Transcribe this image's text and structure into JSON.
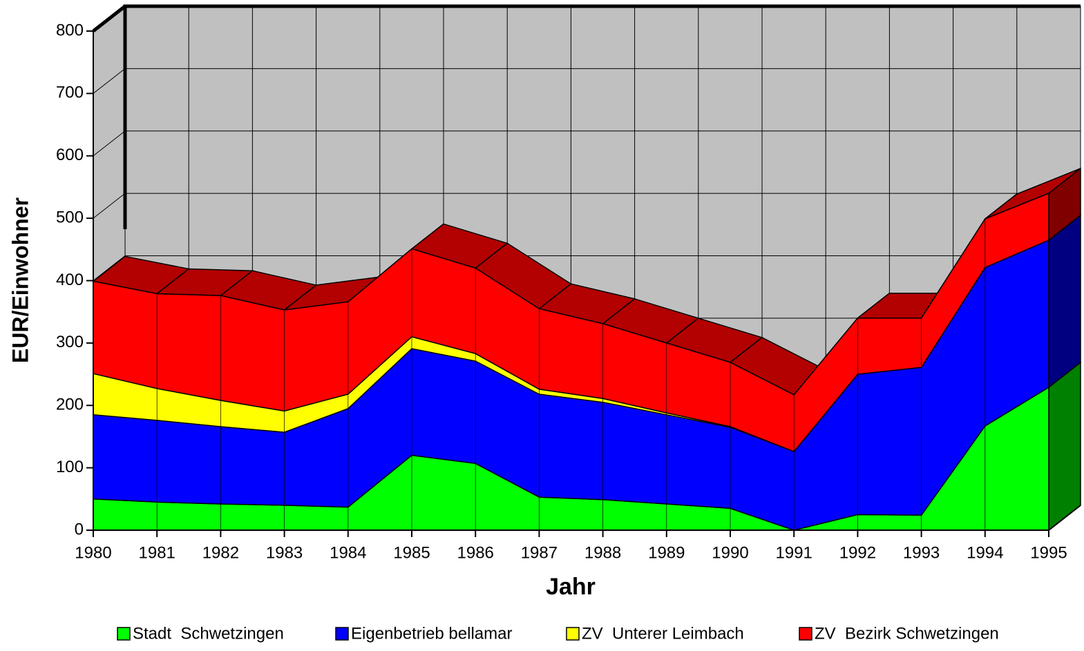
{
  "chart_data": {
    "type": "stacked_area_3d",
    "x_label": "Jahr",
    "y_label": "EUR/Einwohner",
    "categories": [
      "1980",
      "1981",
      "1982",
      "1983",
      "1984",
      "1985",
      "1986",
      "1987",
      "1988",
      "1989",
      "1990",
      "1991",
      "1992",
      "1993",
      "1994",
      "1995"
    ],
    "series": [
      {
        "name": "Stadt  Schwetzingen",
        "color": "#00ff00",
        "values": [
          50,
          45,
          42,
          40,
          37,
          120,
          107,
          53,
          49,
          42,
          35,
          0,
          25,
          24,
          167,
          229
        ]
      },
      {
        "name": "Eigenbetrieb bellamar",
        "color": "#0000ff",
        "values": [
          135,
          131,
          124,
          117,
          158,
          171,
          164,
          165,
          156,
          143,
          130,
          126,
          225,
          237,
          254,
          236
        ]
      },
      {
        "name": "ZV  Unterer Leimbach",
        "color": "#ffff00",
        "values": [
          66,
          51,
          42,
          34,
          23,
          19,
          12,
          8,
          6,
          3,
          1,
          0,
          0,
          0,
          0,
          0
        ]
      },
      {
        "name": "ZV  Bezirk Schwetzingen",
        "color": "#ff0000",
        "values": [
          148,
          152,
          168,
          162,
          148,
          141,
          137,
          129,
          120,
          112,
          103,
          91,
          90,
          79,
          78,
          75
        ]
      }
    ],
    "ylim": [
      0,
      800
    ],
    "yticks": [
      0,
      100,
      200,
      300,
      400,
      500,
      600,
      700,
      800
    ],
    "grid": true,
    "legend": "bottom"
  }
}
